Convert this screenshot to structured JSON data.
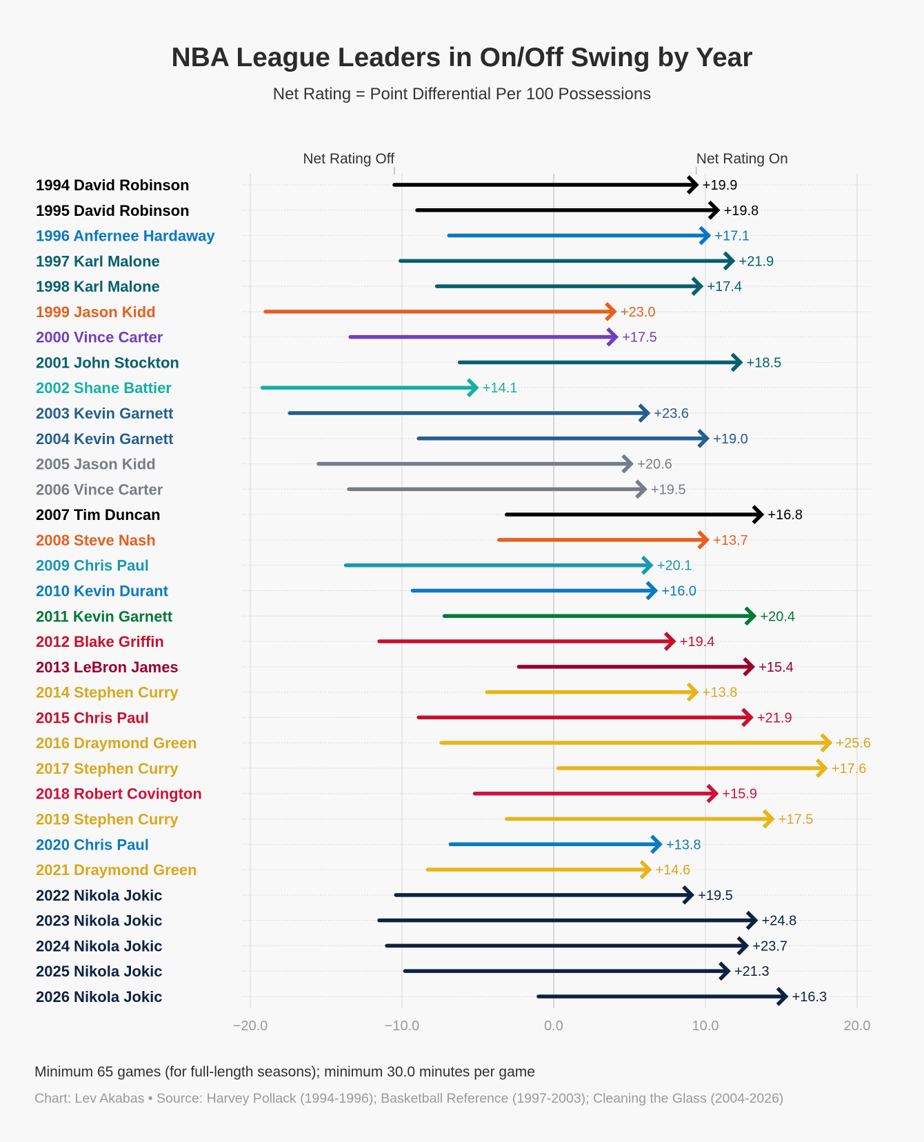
{
  "chart_data": {
    "type": "arrow-range",
    "title": "NBA League Leaders in On/Off Swing by Year",
    "subtitle": "Net Rating = Point Differential Per 100 Possessions",
    "start_label": "Net Rating Off",
    "end_label": "Net Rating On",
    "xlim": [
      -20,
      20
    ],
    "x_ticks": [
      -20,
      -10,
      0,
      10,
      20
    ],
    "x_tick_labels": [
      "−20.0",
      "−10.0",
      "0.0",
      "10.0",
      "20.0"
    ],
    "grid": true,
    "rows": [
      {
        "label": "1994 David Robinson",
        "off": -10.5,
        "on": 9.4,
        "swing": "+19.9",
        "color": "#000000",
        "text_color": "#000000"
      },
      {
        "label": "1995 David Robinson",
        "off": -9.0,
        "on": 10.8,
        "swing": "+19.8",
        "color": "#000000",
        "text_color": "#000000"
      },
      {
        "label": "1996 Anfernee Hardaway",
        "off": -6.9,
        "on": 10.2,
        "swing": "+17.1",
        "color": "#0b77c2",
        "text_color": "#0b77c2"
      },
      {
        "label": "1997 Karl Malone",
        "off": -10.1,
        "on": 11.8,
        "swing": "+21.9",
        "color": "#07606e",
        "text_color": "#07606e"
      },
      {
        "label": "1998 Karl Malone",
        "off": -7.7,
        "on": 9.7,
        "swing": "+17.4",
        "color": "#07606e",
        "text_color": "#07606e"
      },
      {
        "label": "1999 Jason Kidd",
        "off": -19.0,
        "on": 4.0,
        "swing": "+23.0",
        "color": "#e5601f",
        "text_color": "#e5601f"
      },
      {
        "label": "2000 Vince Carter",
        "off": -13.4,
        "on": 4.1,
        "swing": "+17.5",
        "color": "#6f3fbf",
        "text_color": "#6f3fbf"
      },
      {
        "label": "2001 John Stockton",
        "off": -6.2,
        "on": 12.3,
        "swing": "+18.5",
        "color": "#07606e",
        "text_color": "#07606e"
      },
      {
        "label": "2002 Shane Battier",
        "off": -19.2,
        "on": -5.1,
        "swing": "+14.1",
        "color": "#14b0a3",
        "text_color": "#14b0a3"
      },
      {
        "label": "2003 Kevin Garnett",
        "off": -17.4,
        "on": 6.2,
        "swing": "+23.6",
        "color": "#255f8f",
        "text_color": "#255f8f"
      },
      {
        "label": "2004 Kevin Garnett",
        "off": -8.9,
        "on": 10.1,
        "swing": "+19.0",
        "color": "#255f8f",
        "text_color": "#255f8f"
      },
      {
        "label": "2005 Jason Kidd",
        "off": -15.5,
        "on": 5.1,
        "swing": "+20.6",
        "color": "#787d84",
        "text_color": "#787d84"
      },
      {
        "label": "2006 Vince Carter",
        "off": -13.5,
        "on": 6.0,
        "swing": "+19.5",
        "color": "#787d84",
        "text_color": "#787d84"
      },
      {
        "label": "2007 Tim Duncan",
        "off": -3.1,
        "on": 13.7,
        "swing": "+16.8",
        "color": "#000000",
        "text_color": "#000000"
      },
      {
        "label": "2008 Steve Nash",
        "off": -3.6,
        "on": 10.1,
        "swing": "+13.7",
        "color": "#e5601f",
        "text_color": "#e5601f"
      },
      {
        "label": "2009 Chris Paul",
        "off": -13.7,
        "on": 6.4,
        "swing": "+20.1",
        "color": "#1998b2",
        "text_color": "#1998b2"
      },
      {
        "label": "2010 Kevin Durant",
        "off": -9.3,
        "on": 6.7,
        "swing": "+16.0",
        "color": "#0b7ac2",
        "text_color": "#0b7ac2"
      },
      {
        "label": "2011 Kevin Garnett",
        "off": -7.2,
        "on": 13.2,
        "swing": "+20.4",
        "color": "#007a33",
        "text_color": "#007a33"
      },
      {
        "label": "2012 Blake Griffin",
        "off": -11.5,
        "on": 7.9,
        "swing": "+19.4",
        "color": "#c8102e",
        "text_color": "#c8102e"
      },
      {
        "label": "2013 LeBron James",
        "off": -2.3,
        "on": 13.1,
        "swing": "+15.4",
        "color": "#98002e",
        "text_color": "#98002e"
      },
      {
        "label": "2014 Stephen Curry",
        "off": -4.4,
        "on": 9.4,
        "swing": "+13.8",
        "color": "#e8b418",
        "text_color": "#d9a81e"
      },
      {
        "label": "2015 Chris Paul",
        "off": -8.9,
        "on": 13.0,
        "swing": "+21.9",
        "color": "#c8102e",
        "text_color": "#c8102e"
      },
      {
        "label": "2016 Draymond Green",
        "off": -7.4,
        "on": 18.2,
        "swing": "+25.6",
        "color": "#e8b418",
        "text_color": "#d9a81e"
      },
      {
        "label": "2017 Stephen Curry",
        "off": 0.3,
        "on": 17.9,
        "swing": "+17.6",
        "color": "#e8b418",
        "text_color": "#d9a81e"
      },
      {
        "label": "2018 Robert Covington",
        "off": -5.2,
        "on": 10.7,
        "swing": "+15.9",
        "color": "#d0103a",
        "text_color": "#d0103a"
      },
      {
        "label": "2019 Stephen Curry",
        "off": -3.1,
        "on": 14.4,
        "swing": "+17.5",
        "color": "#e8b418",
        "text_color": "#d9a81e"
      },
      {
        "label": "2020 Chris Paul",
        "off": -6.8,
        "on": 7.0,
        "swing": "+13.8",
        "color": "#0b7ac2",
        "text_color": "#0b7ac2"
      },
      {
        "label": "2021 Draymond Green",
        "off": -8.3,
        "on": 6.3,
        "swing": "+14.6",
        "color": "#e8b418",
        "text_color": "#d9a81e"
      },
      {
        "label": "2022 Nikola Jokic",
        "off": -10.4,
        "on": 9.1,
        "swing": "+19.5",
        "color": "#0e2240",
        "text_color": "#0e2240"
      },
      {
        "label": "2023 Nikola Jokic",
        "off": -11.5,
        "on": 13.3,
        "swing": "+24.8",
        "color": "#0e2240",
        "text_color": "#0e2240"
      },
      {
        "label": "2024 Nikola Jokic",
        "off": -11.0,
        "on": 12.7,
        "swing": "+23.7",
        "color": "#0e2240",
        "text_color": "#0e2240"
      },
      {
        "label": "2025 Nikola Jokic",
        "off": -9.8,
        "on": 11.5,
        "swing": "+21.3",
        "color": "#0e2240",
        "text_color": "#0e2240"
      },
      {
        "label": "2026 Nikola Jokic",
        "off": -1.0,
        "on": 15.3,
        "swing": "+16.3",
        "color": "#0e2240",
        "text_color": "#0e2240"
      }
    ],
    "footnote": "Minimum 65 games (for full-length seasons); minimum 30.0 minutes per game",
    "source": "Chart: Lev Akabas • Source: Harvey Pollack (1994-1996); Basketball Reference (1997-2003); Cleaning the Glass (2004-2026)"
  }
}
